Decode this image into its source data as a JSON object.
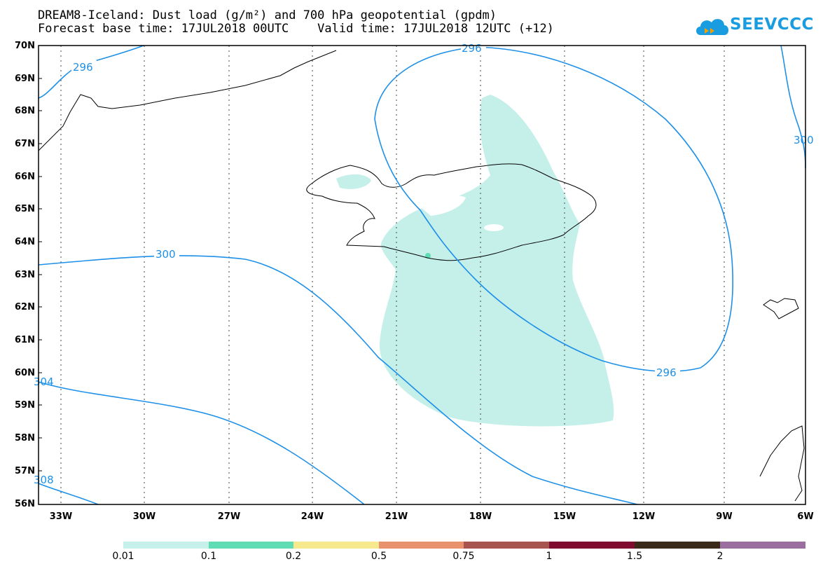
{
  "title": {
    "line1": "DREAM8-Iceland: Dust load (g/m²) and 700 hPa geopotential (gpdm)",
    "line2": "Forecast base time: 17JUL2018 00UTC    Valid time: 17JUL2018 12UTC (+12)"
  },
  "logo": {
    "text": "SEEVCCC",
    "icon": "cloud-icon",
    "color": "#1a9ce0"
  },
  "map": {
    "lat_labels": [
      "70N",
      "69N",
      "68N",
      "67N",
      "66N",
      "65N",
      "64N",
      "63N",
      "62N",
      "61N",
      "60N",
      "59N",
      "58N",
      "57N",
      "56N"
    ],
    "lon_labels": [
      "33W",
      "30W",
      "27W",
      "24W",
      "21W",
      "18W",
      "15W",
      "12W",
      "9W",
      "6W"
    ],
    "contour_labels": [
      "296",
      "296",
      "300",
      "296",
      "304",
      "308",
      "300"
    ],
    "contour_color": "#1e90e8",
    "dust_color": "#c5f0ea",
    "coast_color": "#000000"
  },
  "colorbar": {
    "labels": [
      "0.01",
      "0.1",
      "0.2",
      "0.5",
      "0.75",
      "1",
      "1.5",
      "2"
    ],
    "colors": [
      "#c6f0ea",
      "#5fdcb4",
      "#f6e88c",
      "#e9906c",
      "#a85550",
      "#800d30",
      "#3a2a1a",
      "#9a6e9e"
    ]
  }
}
